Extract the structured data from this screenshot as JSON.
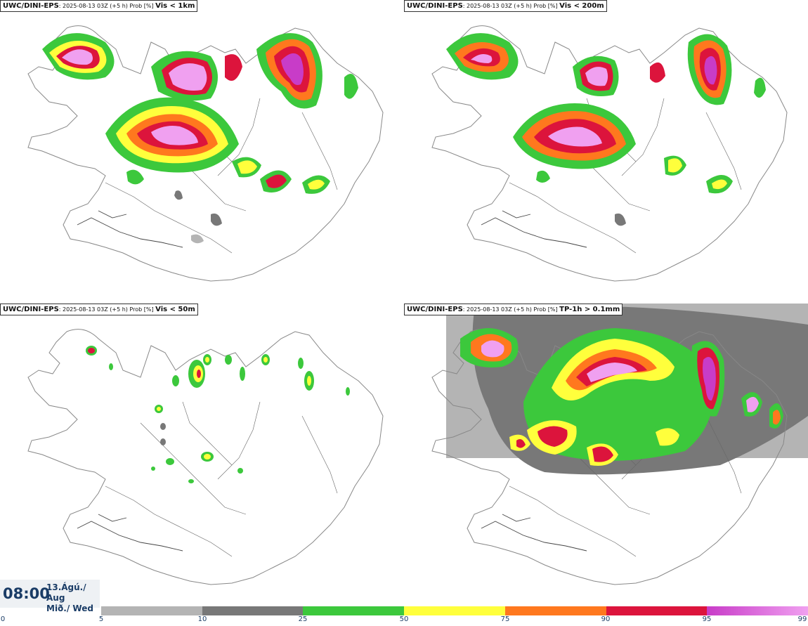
{
  "panels": [
    {
      "model": "UWC/DINI-EPS",
      "meta": ": 2025-08-13 03Z (+5 h) Prob [%] ",
      "variable": "Vis < 1km"
    },
    {
      "model": "UWC/DINI-EPS",
      "meta": ": 2025-08-13 03Z (+5 h) Prob [%] ",
      "variable": "Vis < 200m"
    },
    {
      "model": "UWC/DINI-EPS",
      "meta": ": 2025-08-13 03Z (+5 h) Prob [%] ",
      "variable": "Vis < 50m"
    },
    {
      "model": "UWC/DINI-EPS",
      "meta": ": 2025-08-13 03Z (+5 h) Prob [%] ",
      "variable": "TP-1h > 0.1mm"
    }
  ],
  "timestamp": {
    "time": "08:00",
    "date_line1": "13.Ágú./ Aug",
    "date_line2": "Mið./ Wed"
  },
  "colorbar": {
    "ticks": [
      "0",
      "5",
      "10",
      "25",
      "50",
      "75",
      "90",
      "95",
      "99"
    ],
    "colors": [
      "#ffffff",
      "#b4b4b4",
      "#787878",
      "#3cc83c",
      "#ffff3c",
      "#ff781e",
      "#dc143c",
      "#c83cc8",
      "#f0a0f0"
    ]
  }
}
